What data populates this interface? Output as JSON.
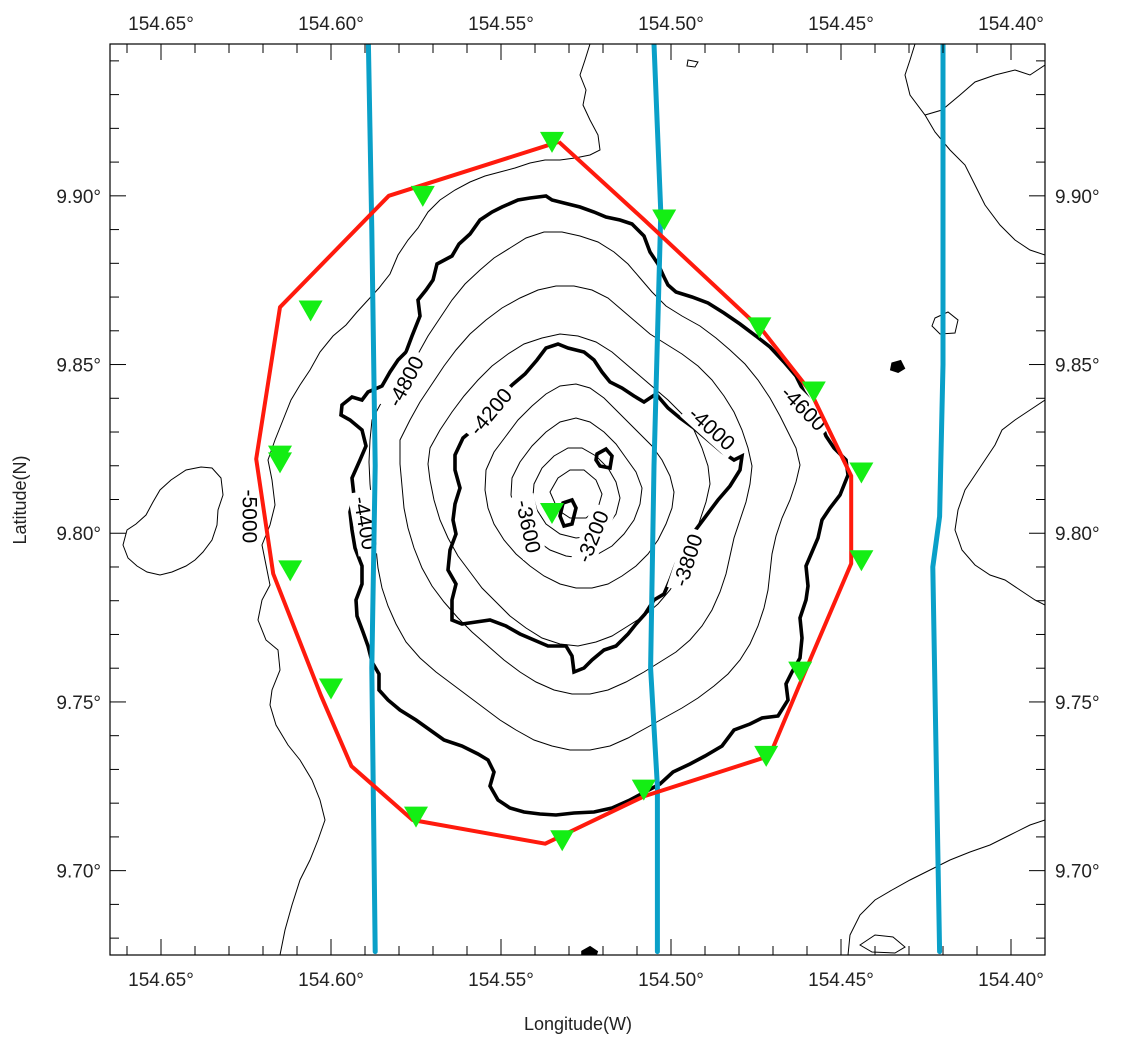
{
  "map": {
    "x_axis_label": "Longitude(W)",
    "y_axis_label": "Latitude(N)",
    "lon_range": [
      154.665,
      154.39
    ],
    "lat_range": [
      9.675,
      9.945
    ],
    "lon_ticks": [
      "154.65°",
      "154.60°",
      "154.55°",
      "154.50°",
      "154.45°",
      "154.40°"
    ],
    "lon_tick_values": [
      154.65,
      154.6,
      154.55,
      154.5,
      154.45,
      154.4
    ],
    "lat_ticks": [
      "9.70°",
      "9.75°",
      "9.80°",
      "9.85°",
      "9.90°"
    ],
    "lat_tick_values": [
      9.7,
      9.75,
      9.8,
      9.85,
      9.9
    ],
    "contour_labels": [
      {
        "text": "-4800",
        "lon": 154.578,
        "lat": 9.845,
        "angle": -62
      },
      {
        "text": "-4200",
        "lon": 154.553,
        "lat": 9.836,
        "angle": -50
      },
      {
        "text": "-4000",
        "lon": 154.488,
        "lat": 9.831,
        "angle": 42
      },
      {
        "text": "-4600",
        "lon": 154.461,
        "lat": 9.837,
        "angle": 45
      },
      {
        "text": "-5000",
        "lon": 154.624,
        "lat": 9.805,
        "angle": 90
      },
      {
        "text": "-4400",
        "lon": 154.59,
        "lat": 9.803,
        "angle": 80
      },
      {
        "text": "-3600",
        "lon": 154.542,
        "lat": 9.802,
        "angle": 78
      },
      {
        "text": "-3200",
        "lon": 154.523,
        "lat": 9.799,
        "angle": -68
      },
      {
        "text": "-3800",
        "lon": 154.495,
        "lat": 9.792,
        "angle": -72
      }
    ],
    "survey_polygon": [
      [
        154.533,
        9.916
      ],
      [
        154.508,
        9.893
      ],
      [
        154.473,
        9.86
      ],
      [
        154.459,
        9.842
      ],
      [
        154.447,
        9.817
      ],
      [
        154.447,
        9.791
      ],
      [
        154.461,
        9.758
      ],
      [
        154.471,
        9.734
      ],
      [
        154.508,
        9.722
      ],
      [
        154.537,
        9.708
      ],
      [
        154.576,
        9.715
      ],
      [
        154.594,
        9.731
      ],
      [
        154.603,
        9.752
      ],
      [
        154.617,
        9.788
      ],
      [
        154.622,
        9.822
      ],
      [
        154.615,
        9.867
      ],
      [
        154.583,
        9.9
      ],
      [
        154.533,
        9.916
      ]
    ],
    "stations": [
      [
        154.535,
        9.916
      ],
      [
        154.573,
        9.9
      ],
      [
        154.606,
        9.866
      ],
      [
        154.615,
        9.823
      ],
      [
        154.615,
        9.821
      ],
      [
        154.612,
        9.789
      ],
      [
        154.6,
        9.754
      ],
      [
        154.575,
        9.716
      ],
      [
        154.532,
        9.709
      ],
      [
        154.508,
        9.724
      ],
      [
        154.472,
        9.734
      ],
      [
        154.462,
        9.759
      ],
      [
        154.444,
        9.792
      ],
      [
        154.444,
        9.818
      ],
      [
        154.458,
        9.842
      ],
      [
        154.474,
        9.861
      ],
      [
        154.502,
        9.893
      ],
      [
        154.535,
        9.806
      ]
    ],
    "ship_tracks": [
      [
        [
          154.589,
          9.945
        ],
        [
          154.588,
          9.89
        ],
        [
          154.587,
          9.82
        ],
        [
          154.588,
          9.76
        ],
        [
          154.587,
          9.676
        ]
      ],
      [
        [
          154.505,
          9.945
        ],
        [
          154.503,
          9.895
        ],
        [
          154.505,
          9.82
        ],
        [
          154.506,
          9.76
        ],
        [
          154.504,
          9.725
        ],
        [
          154.504,
          9.676
        ]
      ],
      [
        [
          154.42,
          9.945
        ],
        [
          154.42,
          9.85
        ],
        [
          154.421,
          9.805
        ],
        [
          154.423,
          9.79
        ],
        [
          154.421,
          9.676
        ]
      ]
    ],
    "colors": {
      "polygon": "#ff1a0d",
      "station": "#14ee14",
      "track": "#0aa0c8",
      "contour": "#000000"
    }
  }
}
